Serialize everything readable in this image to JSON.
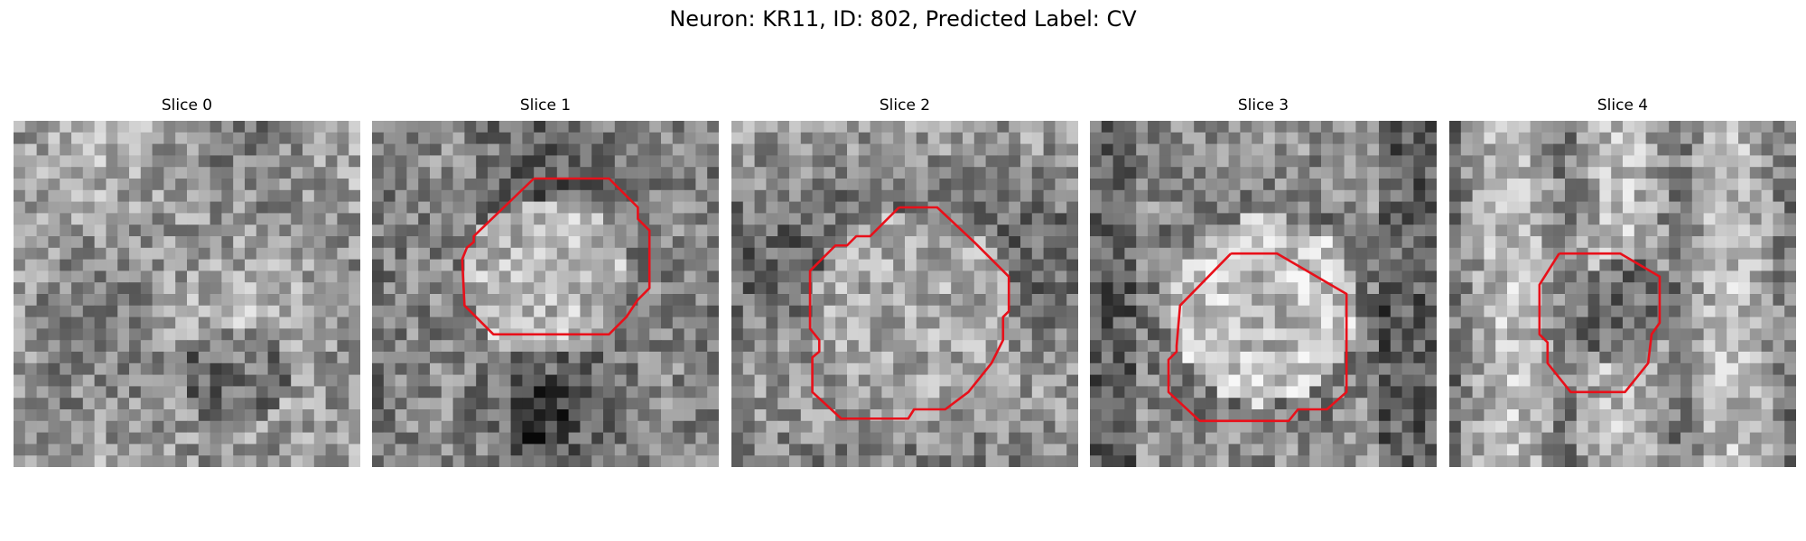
{
  "figure": {
    "title": "Neuron: KR11, ID: 802, Predicted Label: CV"
  },
  "panels": [
    {
      "title": "Slice 0",
      "seed": 11,
      "has_roi": false
    },
    {
      "title": "Slice 1",
      "seed": 23,
      "has_roi": true
    },
    {
      "title": "Slice 2",
      "seed": 37,
      "has_roi": true
    },
    {
      "title": "Slice 3",
      "seed": 41,
      "has_roi": true
    },
    {
      "title": "Slice 4",
      "seed": 59,
      "has_roi": true
    }
  ],
  "colors": {
    "roi_outline": "#e8101a",
    "background": "#ffffff"
  }
}
